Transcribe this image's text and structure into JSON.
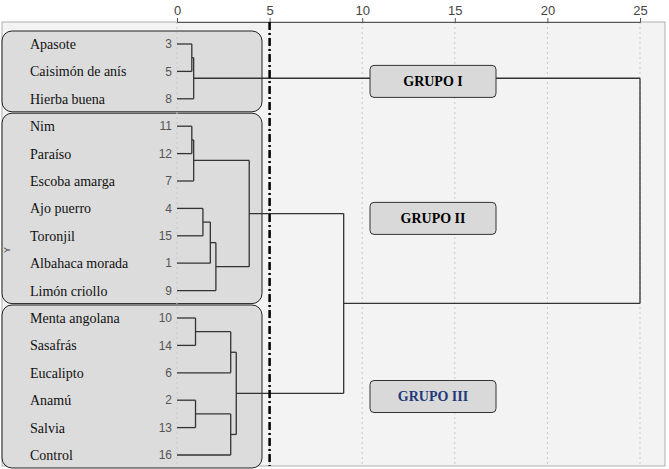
{
  "chart_data": {
    "type": "dendrogram",
    "ylabel": "Y",
    "xlim": [
      0,
      25
    ],
    "xticks": [
      0,
      5,
      10,
      15,
      20,
      25
    ],
    "grid": true,
    "cut": 5,
    "tree": {
      "height": 25,
      "children": [
        {
          "height": 0.9,
          "children": [
            {
              "height": 0.8,
              "children": [
                {
                  "label": "Apasote",
                  "id": 3
                },
                {
                  "label": "Caisimón de anís",
                  "id": 5
                }
              ]
            },
            {
              "label": "Hierba buena",
              "id": 8
            }
          ]
        },
        {
          "height": 9.0,
          "children": [
            {
              "height": 3.9,
              "children": [
                {
                  "height": 0.9,
                  "children": [
                    {
                      "height": 0.8,
                      "children": [
                        {
                          "label": "Nim",
                          "id": 11
                        },
                        {
                          "label": "Paraíso",
                          "id": 12
                        }
                      ]
                    },
                    {
                      "label": "Escoba amarga",
                      "id": 7
                    }
                  ]
                },
                {
                  "height": 2.1,
                  "children": [
                    {
                      "height": 1.8,
                      "children": [
                        {
                          "height": 1.4,
                          "children": [
                            {
                              "label": "Ajo puerro",
                              "id": 4
                            },
                            {
                              "label": "Toronjil",
                              "id": 15
                            }
                          ]
                        },
                        {
                          "label": "Albahaca morada",
                          "id": 1
                        }
                      ]
                    },
                    {
                      "label": "Limón criollo",
                      "id": 9
                    }
                  ]
                }
              ]
            },
            {
              "height": 3.2,
              "children": [
                {
                  "height": 2.9,
                  "children": [
                    {
                      "height": 1.0,
                      "children": [
                        {
                          "label": "Menta angolana",
                          "id": 10
                        },
                        {
                          "label": "Sasafrás",
                          "id": 14
                        }
                      ]
                    },
                    {
                      "label": "Eucalipto",
                      "id": 6
                    }
                  ]
                },
                {
                  "height": 2.9,
                  "children": [
                    {
                      "height": 1.0,
                      "children": [
                        {
                          "label": "Anamú",
                          "id": 2
                        },
                        {
                          "label": "Salvia",
                          "id": 13
                        }
                      ]
                    },
                    {
                      "label": "Control",
                      "id": 16
                    }
                  ]
                }
              ]
            }
          ]
        }
      ]
    },
    "groups": [
      {
        "label": "GRUPO I",
        "members": [
          3,
          5,
          8
        ],
        "color": "#000000"
      },
      {
        "label": "GRUPO II",
        "members": [
          11,
          12,
          7,
          4,
          15,
          1,
          9
        ],
        "color": "#000000"
      },
      {
        "label": "GRUPO III",
        "members": [
          10,
          14,
          6,
          2,
          13,
          16
        ],
        "color": "#1f3a7a"
      }
    ]
  }
}
